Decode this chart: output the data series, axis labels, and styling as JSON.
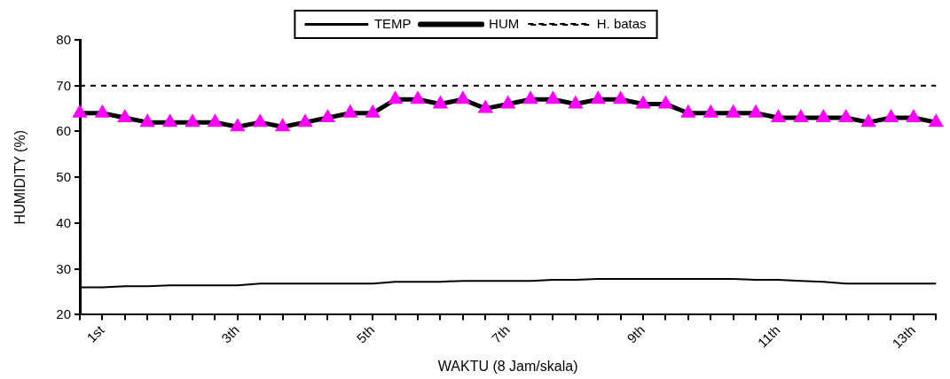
{
  "chart_data": {
    "type": "line",
    "xlabel": "WAKTU (8 Jam/skala)",
    "ylabel": "HUMIDITY (%)",
    "categories": [
      null,
      "1st",
      null,
      null,
      null,
      null,
      null,
      "3th",
      null,
      null,
      null,
      null,
      null,
      "5th",
      null,
      null,
      null,
      null,
      null,
      "7th",
      null,
      null,
      null,
      null,
      null,
      "9th",
      null,
      null,
      null,
      null,
      null,
      "11th",
      null,
      null,
      null,
      null,
      null,
      "13th",
      null
    ],
    "series": [
      {
        "name": "TEMP",
        "color": "#000000",
        "marker": "none",
        "line_style": "solid",
        "values": [
          26,
          26,
          26.2,
          26.2,
          26.4,
          26.4,
          26.4,
          26.4,
          26.8,
          26.8,
          26.8,
          26.8,
          26.8,
          26.8,
          27.2,
          27.2,
          27.2,
          27.4,
          27.4,
          27.4,
          27.4,
          27.6,
          27.6,
          27.8,
          27.8,
          27.8,
          27.8,
          27.8,
          27.8,
          27.8,
          27.6,
          27.6,
          27.4,
          27.2,
          26.8,
          26.8,
          26.8,
          26.8,
          26.8
        ]
      },
      {
        "name": "HUM",
        "color": "#000000",
        "marker": "triangle",
        "line_style": "solid",
        "values": [
          64,
          64,
          63,
          62,
          62,
          62,
          62,
          61,
          62,
          61,
          62,
          63,
          64,
          64,
          67,
          67,
          66,
          67,
          65,
          66,
          67,
          67,
          66,
          67,
          67,
          66,
          66,
          64,
          64,
          64,
          64,
          63,
          63,
          63,
          63,
          62,
          63,
          63,
          62
        ]
      },
      {
        "name": "H. batas",
        "color": "#000000",
        "marker": "none",
        "line_style": "dashed",
        "values": [
          70,
          70,
          70,
          70,
          70,
          70,
          70,
          70,
          70,
          70,
          70,
          70,
          70,
          70,
          70,
          70,
          70,
          70,
          70,
          70,
          70,
          70,
          70,
          70,
          70,
          70,
          70,
          70,
          70,
          70,
          70,
          70,
          70,
          70,
          70,
          70,
          70,
          70,
          70
        ]
      }
    ],
    "ylim": [
      20,
      80
    ],
    "yticks": [
      20,
      30,
      40,
      50,
      60,
      70,
      80
    ],
    "grid": false,
    "legend": "top"
  }
}
